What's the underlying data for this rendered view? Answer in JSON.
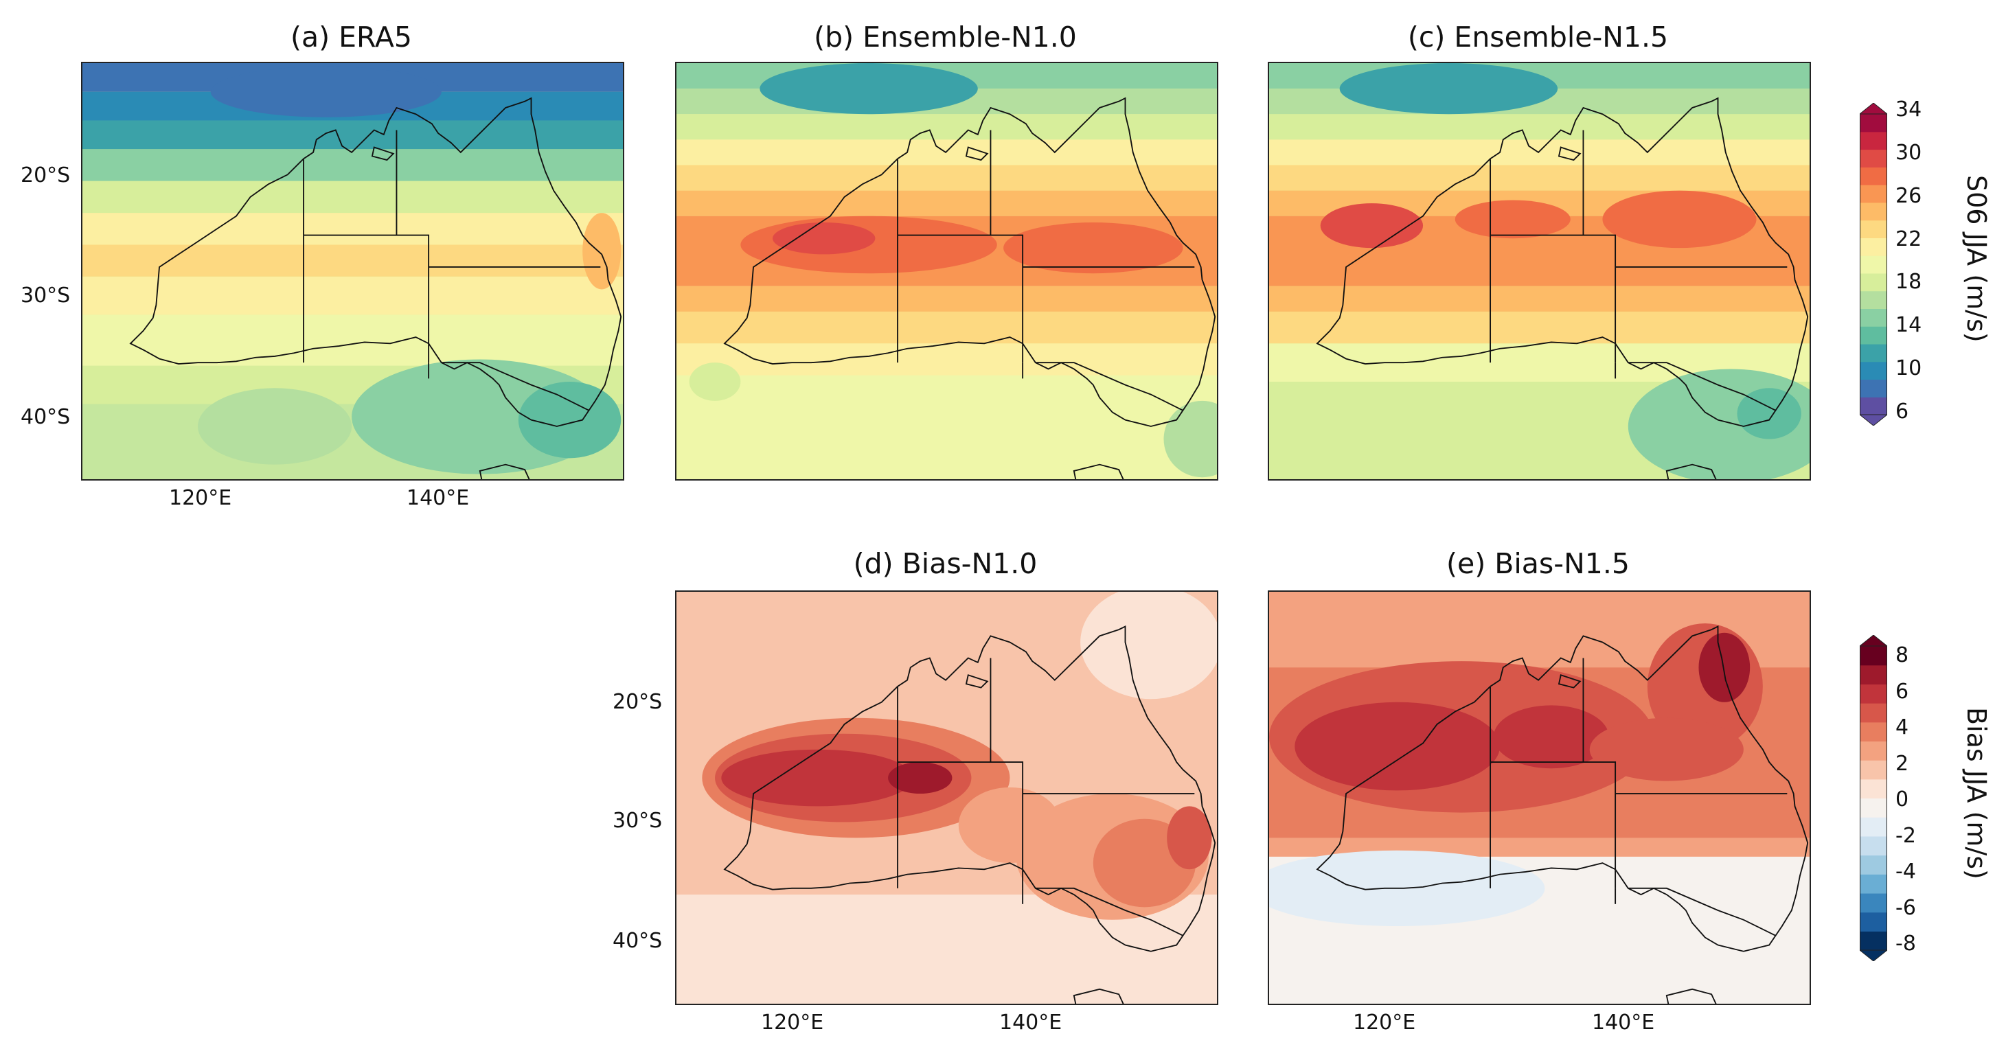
{
  "panels": {
    "a": {
      "title": "(a) ERA5"
    },
    "b": {
      "title": "(b) Ensemble-N1.0"
    },
    "c": {
      "title": "(c) Ensemble-N1.5"
    },
    "d": {
      "title": "(d) Bias-N1.0"
    },
    "e": {
      "title": "(e) Bias-N1.5"
    }
  },
  "axes": {
    "lat_ticks": [
      "20°S",
      "30°S",
      "40°S"
    ],
    "lon_ticks": [
      "120°E",
      "140°E"
    ]
  },
  "colorbars": {
    "s06": {
      "label": "S06 JJA (m/s)",
      "ticks": [
        "34",
        "30",
        "26",
        "22",
        "18",
        "14",
        "10",
        "6"
      ],
      "colors": [
        "#5e4fa2",
        "#3d73b3",
        "#2a8bb5",
        "#3ba2a8",
        "#5fbd9f",
        "#8ad0a3",
        "#b4df9f",
        "#d7ee9b",
        "#eff7a9",
        "#fcefa1",
        "#fdd981",
        "#fdbb67",
        "#f99653",
        "#f06c44",
        "#e04b45",
        "#c9263f",
        "#a10c3e"
      ]
    },
    "bias": {
      "label": "Bias JJA (m/s)",
      "ticks": [
        "8",
        "6",
        "4",
        "2",
        "0",
        "-2",
        "-4",
        "-6",
        "-8"
      ],
      "colors": [
        "#053061",
        "#1d5fa0",
        "#3a86bd",
        "#6aaed4",
        "#9ecae1",
        "#c7deee",
        "#e3edf5",
        "#f6f2ee",
        "#fbe3d5",
        "#f8c4aa",
        "#f3a280",
        "#e87e5f",
        "#d7574a",
        "#c1343b",
        "#9e1a2c",
        "#67001f"
      ]
    }
  },
  "chart_data": {
    "type": "map",
    "region": "Australia",
    "lon_range": [
      110,
      155
    ],
    "lat_range": [
      -45,
      -10
    ],
    "panels": [
      {
        "id": "a",
        "title": "(a) ERA5",
        "variable": "S06 JJA",
        "units": "m/s",
        "min": 6,
        "max": 34
      },
      {
        "id": "b",
        "title": "(b) Ensemble-N1.0",
        "variable": "S06 JJA",
        "units": "m/s",
        "min": 6,
        "max": 34
      },
      {
        "id": "c",
        "title": "(c) Ensemble-N1.5",
        "variable": "S06 JJA",
        "units": "m/s",
        "min": 6,
        "max": 34
      },
      {
        "id": "d",
        "title": "(d) Bias-N1.0",
        "variable": "Bias JJA",
        "units": "m/s",
        "min": -8,
        "max": 8
      },
      {
        "id": "e",
        "title": "(e) Bias-N1.5",
        "variable": "Bias JJA",
        "units": "m/s",
        "min": -8,
        "max": 8
      }
    ]
  }
}
